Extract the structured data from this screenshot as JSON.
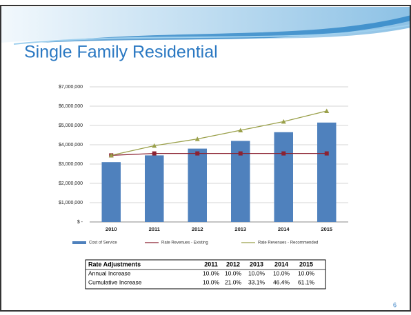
{
  "slide": {
    "title": "Single Family Residential",
    "page_number": "6"
  },
  "chart_data": {
    "type": "combo",
    "categories": [
      "2010",
      "2011",
      "2012",
      "2013",
      "2014",
      "2015"
    ],
    "series": [
      {
        "name": "Cost of Service",
        "type": "bar",
        "color": "#4f81bd",
        "values": [
          3100000,
          3450000,
          3800000,
          4200000,
          4650000,
          5150000
        ]
      },
      {
        "name": "Rate Revenues - Existing",
        "type": "line",
        "color": "#8b2232",
        "values": [
          3450000,
          3550000,
          3550000,
          3550000,
          3550000,
          3550000
        ]
      },
      {
        "name": "Rate Revenues - Recommended",
        "type": "line",
        "color": "#9aa04a",
        "values": [
          3450000,
          3950000,
          4300000,
          4750000,
          5200000,
          5750000
        ]
      }
    ],
    "ylim": [
      0,
      7000000
    ],
    "yticks": [
      {
        "value": 0,
        "label": "$ -"
      },
      {
        "value": 1000000,
        "label": "$1,000,000"
      },
      {
        "value": 2000000,
        "label": "$2,000,000"
      },
      {
        "value": 3000000,
        "label": "$3,000,000"
      },
      {
        "value": 4000000,
        "label": "$4,000,000"
      },
      {
        "value": 5000000,
        "label": "$5,000,000"
      },
      {
        "value": 6000000,
        "label": "$6,000,000"
      },
      {
        "value": 7000000,
        "label": "$7,000,000"
      }
    ],
    "grid": true
  },
  "table": {
    "rows": [
      [
        "Rate Adjustments",
        "2011",
        "2012",
        "2013",
        "2014",
        "2015"
      ],
      [
        "Annual Increase",
        "10.0%",
        "10.0%",
        "10.0%",
        "10.0%",
        "10.0%"
      ],
      [
        "Cumulative Increase",
        "10.0%",
        "21.0%",
        "33.1%",
        "46.4%",
        "61.1%"
      ]
    ]
  }
}
